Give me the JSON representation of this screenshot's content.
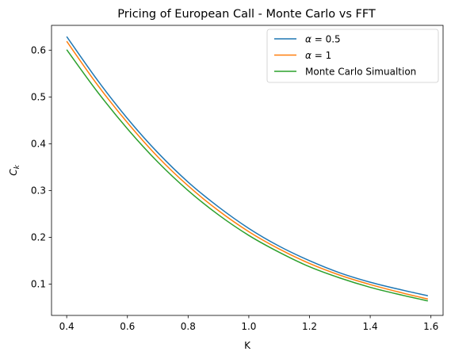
{
  "chart_data": {
    "type": "line",
    "title": "Pricing of European Call - Monte Carlo vs FFT",
    "xlabel": "K",
    "ylabel": "C",
    "ylabel_subscript": "k",
    "xlim": [
      0.35,
      1.64
    ],
    "ylim": [
      0.033,
      0.653
    ],
    "xticks": [
      0.4,
      0.6,
      0.8,
      1.0,
      1.2,
      1.4,
      1.6
    ],
    "xtick_labels": [
      "0.4",
      "0.6",
      "0.8",
      "1.0",
      "1.2",
      "1.4",
      "1.6"
    ],
    "yticks": [
      0.1,
      0.2,
      0.3,
      0.4,
      0.5,
      0.6
    ],
    "ytick_labels": [
      "0.1",
      "0.2",
      "0.3",
      "0.4",
      "0.5",
      "0.6"
    ],
    "grid": false,
    "legend_position": "top-right",
    "x": [
      0.4,
      0.5,
      0.6,
      0.7,
      0.8,
      0.9,
      1.0,
      1.1,
      1.2,
      1.3,
      1.4,
      1.5,
      1.59
    ],
    "series": [
      {
        "name": "α = 0.5",
        "legend_symbol": "α",
        "legend_value": "= 0.5",
        "color": "#1f77b4",
        "values": [
          0.629,
          0.537,
          0.454,
          0.381,
          0.318,
          0.265,
          0.219,
          0.181,
          0.15,
          0.124,
          0.104,
          0.088,
          0.075
        ]
      },
      {
        "name": "α = 1",
        "legend_symbol": "α",
        "legend_value": "= 1",
        "color": "#ff7f0e",
        "values": [
          0.619,
          0.527,
          0.445,
          0.372,
          0.31,
          0.257,
          0.212,
          0.175,
          0.144,
          0.119,
          0.099,
          0.082,
          0.068
        ]
      },
      {
        "name": "Monte Carlo Simualtion",
        "color": "#2ca02c",
        "values": [
          0.601,
          0.512,
          0.432,
          0.361,
          0.3,
          0.248,
          0.204,
          0.168,
          0.137,
          0.113,
          0.093,
          0.077,
          0.064
        ]
      }
    ]
  }
}
